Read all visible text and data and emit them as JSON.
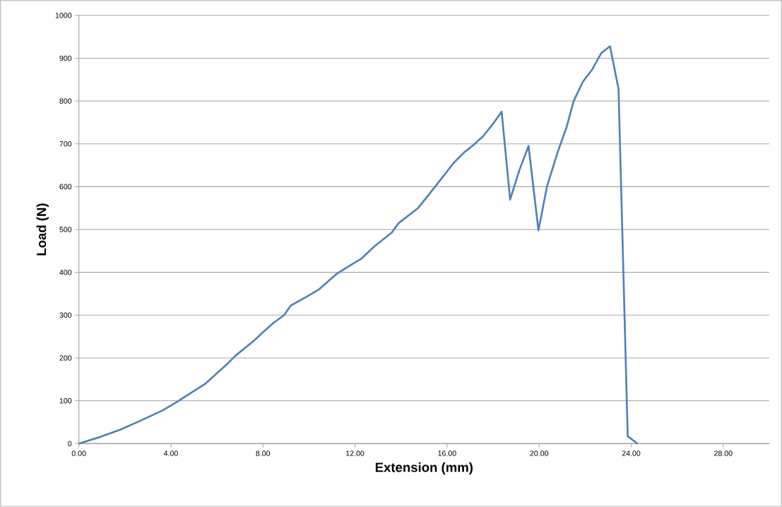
{
  "chart_data": {
    "type": "line",
    "xlabel": "Extension (mm)",
    "ylabel": "Load (N)",
    "x": [
      0,
      0.9,
      1.82,
      2.74,
      3.66,
      4.34,
      5.5,
      6.43,
      6.8,
      7.6,
      8.0,
      8.46,
      8.92,
      9.2,
      9.8,
      10.43,
      11.17,
      11.6,
      12.28,
      12.83,
      13.6,
      13.9,
      14.74,
      15.48,
      16.28,
      16.74,
      17.14,
      17.57,
      17.97,
      18.37,
      18.74,
      19.15,
      19.54,
      19.97,
      20.34,
      20.8,
      21.2,
      21.5,
      21.9,
      22.3,
      22.7,
      23.08,
      23.45,
      23.85,
      24.28
    ],
    "series": [
      {
        "color": "#4f81bd",
        "values": [
          0,
          15,
          33,
          55,
          78,
          100,
          140,
          185,
          205,
          240,
          260,
          282,
          300,
          322,
          340,
          360,
          395,
          410,
          432,
          460,
          493,
          515,
          550,
          600,
          655,
          680,
          697,
          718,
          745,
          775,
          570,
          640,
          695,
          498,
          600,
          680,
          740,
          800,
          845,
          873,
          912,
          928,
          828,
          17,
          0
        ]
      }
    ],
    "xlim": [
      0,
      30
    ],
    "ylim": [
      0,
      1000
    ],
    "xticks": [
      {
        "value": 0,
        "label": "0.00"
      },
      {
        "value": 4,
        "label": "4.00"
      },
      {
        "value": 8,
        "label": "8.00"
      },
      {
        "value": 12,
        "label": "12.00"
      },
      {
        "value": 16,
        "label": "16.00"
      },
      {
        "value": 20,
        "label": "20.00"
      },
      {
        "value": 24,
        "label": "24.00"
      },
      {
        "value": 28,
        "label": "28.00"
      }
    ],
    "yticks": [
      0,
      100,
      200,
      300,
      400,
      500,
      600,
      700,
      800,
      900,
      1000
    ],
    "grid": "y",
    "marker": "none",
    "line_style": "solid"
  }
}
